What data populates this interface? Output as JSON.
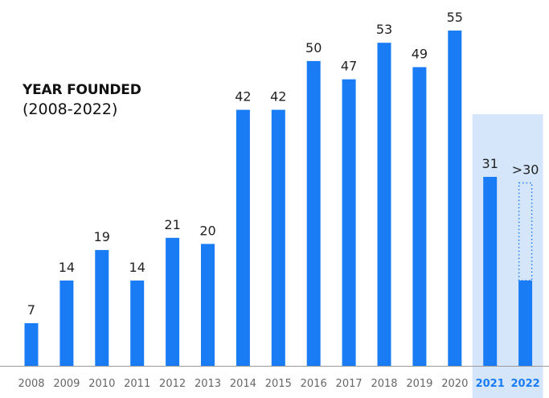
{
  "chart_data": {
    "type": "bar",
    "title": "YEAR FOUNDED",
    "subtitle": "(2008-2022)",
    "categories": [
      "2008",
      "2009",
      "2010",
      "2011",
      "2012",
      "2013",
      "2014",
      "2015",
      "2016",
      "2017",
      "2018",
      "2019",
      "2020",
      "2021",
      "2022"
    ],
    "values": [
      7,
      14,
      19,
      14,
      21,
      20,
      42,
      42,
      50,
      47,
      53,
      49,
      55,
      31,
      14
    ],
    "data_labels": [
      "7",
      "14",
      "19",
      "14",
      "21",
      "20",
      "42",
      "42",
      "50",
      "47",
      "53",
      "49",
      "55",
      "31",
      ">30"
    ],
    "projected": {
      "category": "2022",
      "value": 30
    },
    "highlighted_categories": [
      "2021",
      "2022"
    ],
    "ylim": [
      0,
      55
    ],
    "grid": false,
    "xlabel": "",
    "ylabel": "",
    "colors": {
      "bar": "#1a7cf5",
      "highlight_band": "#d5e6fb",
      "highlight_label": "#1a7cf5",
      "label": "#222222",
      "tick": "#666666",
      "baseline": "#999999"
    }
  }
}
